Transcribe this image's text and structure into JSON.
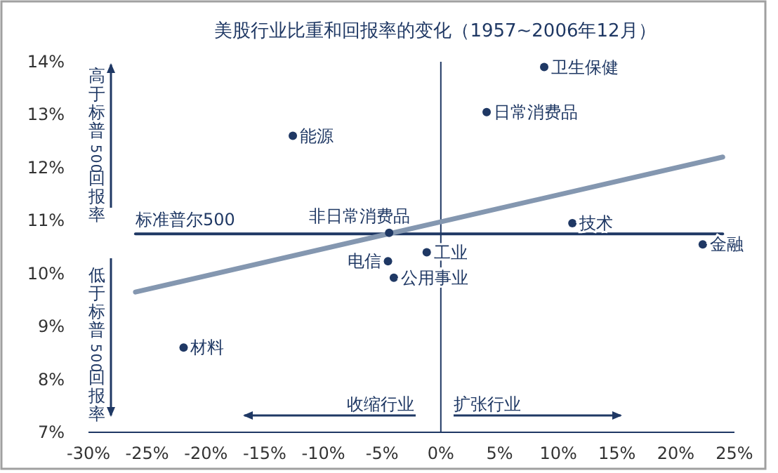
{
  "chart_data": {
    "type": "scatter",
    "title": "美股行业比重和回报率的变化（1957~2006年12月）",
    "xlim": [
      -30,
      25
    ],
    "ylim": [
      7,
      14
    ],
    "xticks": [
      {
        "value": -30,
        "label": "-30%"
      },
      {
        "value": -25,
        "label": "-25%"
      },
      {
        "value": -20,
        "label": "-20%"
      },
      {
        "value": -15,
        "label": "-15%"
      },
      {
        "value": -10,
        "label": "-10%"
      },
      {
        "value": -5,
        "label": "-5%"
      },
      {
        "value": 0,
        "label": "0%"
      },
      {
        "value": 5,
        "label": "5%"
      },
      {
        "value": 10,
        "label": "10%"
      },
      {
        "value": 15,
        "label": "15%"
      },
      {
        "value": 20,
        "label": "20%"
      },
      {
        "value": 25,
        "label": "25%"
      }
    ],
    "yticks": [
      {
        "value": 7,
        "label": "7%"
      },
      {
        "value": 8,
        "label": "8%"
      },
      {
        "value": 9,
        "label": "9%"
      },
      {
        "value": 10,
        "label": "10%"
      },
      {
        "value": 11,
        "label": "11%"
      },
      {
        "value": 12,
        "label": "12%"
      },
      {
        "value": 13,
        "label": "13%"
      },
      {
        "value": 14,
        "label": "14%"
      }
    ],
    "grid": false,
    "marker": "circle",
    "series": [
      {
        "type": "line",
        "name": "标准普尔500",
        "color": "#1f3864",
        "marker": "none",
        "x": [
          -26,
          24
        ],
        "values": [
          10.75,
          10.75
        ]
      },
      {
        "type": "line",
        "color": "#8497b0",
        "marker": "none",
        "x": [
          -26,
          24
        ],
        "values": [
          9.65,
          12.2
        ]
      },
      {
        "name": "卫生保健",
        "color": "#1f3864",
        "x": [
          8.8
        ],
        "values": [
          13.9
        ]
      },
      {
        "name": "日常消费品",
        "color": "#1f3864",
        "x": [
          3.9
        ],
        "values": [
          13.05
        ]
      },
      {
        "name": "能源",
        "color": "#1f3864",
        "x": [
          -12.6
        ],
        "values": [
          12.6
        ]
      },
      {
        "name": "非日常消费品",
        "color": "#1f3864",
        "x": [
          -4.4
        ],
        "values": [
          10.77
        ]
      },
      {
        "name": "技术",
        "color": "#1f3864",
        "x": [
          11.2
        ],
        "values": [
          10.95
        ]
      },
      {
        "name": "金融",
        "color": "#1f3864",
        "x": [
          22.3
        ],
        "values": [
          10.55
        ]
      },
      {
        "name": "工业",
        "color": "#1f3864",
        "x": [
          -1.2
        ],
        "values": [
          10.4
        ]
      },
      {
        "name": "电信",
        "color": "#1f3864",
        "x": [
          -4.5
        ],
        "values": [
          10.23
        ]
      },
      {
        "name": "公用事业",
        "color": "#1f3864",
        "x": [
          -4.0
        ],
        "values": [
          9.92
        ]
      },
      {
        "name": "材料",
        "color": "#1f3864",
        "x": [
          -21.9
        ],
        "values": [
          8.6
        ]
      }
    ],
    "ref_lines": [
      {
        "axis": "x",
        "value": 0,
        "color": "#1f3864"
      }
    ],
    "annotations": [
      "高于标普500回报率",
      "低于标普500回报率",
      "收缩行业",
      "扩张行业"
    ]
  }
}
